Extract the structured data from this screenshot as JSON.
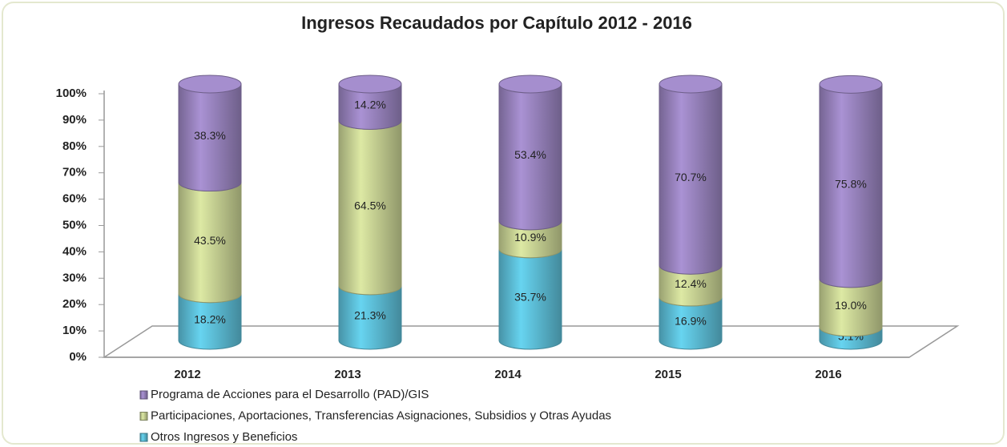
{
  "chart_data": {
    "type": "bar3d_stacked",
    "title": "Ingresos Recaudados por Capítulo 2012 - 2016",
    "categories": [
      "2012",
      "2013",
      "2014",
      "2015",
      "2016"
    ],
    "series": [
      {
        "name": "Programa de Acciones para el Desarrollo (PAD)/GIS",
        "color": "#9d87c4",
        "values": [
          38.3,
          14.2,
          53.4,
          70.7,
          75.8
        ],
        "value_labels": [
          "38.3%",
          "14.2%",
          "53.4%",
          "70.7%",
          "75.8%"
        ]
      },
      {
        "name": "Participaciones, Aportaciones, Transferencias Asignaciones, Subsidios y Otras Ayudas",
        "color": "#cdd898",
        "values": [
          43.5,
          64.5,
          10.9,
          12.4,
          19.0
        ],
        "value_labels": [
          "43.5%",
          "64.5%",
          "10.9%",
          "12.4%",
          "19.0%"
        ]
      },
      {
        "name": "Otros Ingresos y Beneficios",
        "color": "#5fc4de",
        "values": [
          18.2,
          21.3,
          35.7,
          16.9,
          5.1
        ],
        "value_labels": [
          "18.2%",
          "21.3%",
          "35.7%",
          "16.9%",
          "5.1%"
        ]
      }
    ],
    "ylim": [
      0,
      100
    ],
    "yticks": [
      {
        "value": 0,
        "label": "0%"
      },
      {
        "value": 10,
        "label": "10%"
      },
      {
        "value": 20,
        "label": "20%"
      },
      {
        "value": 30,
        "label": "30%"
      },
      {
        "value": 40,
        "label": "40%"
      },
      {
        "value": 50,
        "label": "50%"
      },
      {
        "value": 60,
        "label": "60%"
      },
      {
        "value": 70,
        "label": "70%"
      },
      {
        "value": 80,
        "label": "80%"
      },
      {
        "value": 90,
        "label": "90%"
      },
      {
        "value": 100,
        "label": "100%"
      }
    ],
    "legend": "bottom-left"
  }
}
